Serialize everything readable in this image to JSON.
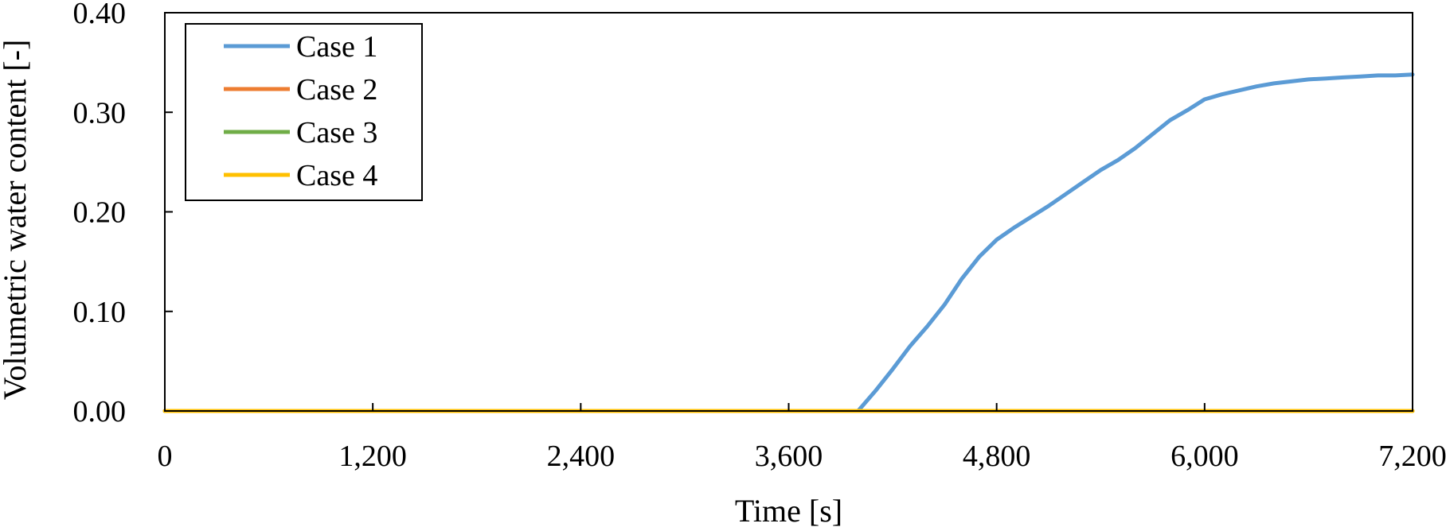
{
  "chart_data": {
    "type": "line",
    "title": "",
    "xlabel": "Time [s]",
    "ylabel": "Volumetric water content [-]",
    "xlim": [
      0,
      7200
    ],
    "ylim": [
      0,
      0.4
    ],
    "x_ticks": [
      "0",
      "1,200",
      "2,400",
      "3,600",
      "4,800",
      "6,000",
      "7,200"
    ],
    "x_tick_values": [
      0,
      1200,
      2400,
      3600,
      4800,
      6000,
      7200
    ],
    "y_ticks": [
      "0.00",
      "0.10",
      "0.20",
      "0.30",
      "0.40"
    ],
    "y_tick_values": [
      0,
      0.1,
      0.2,
      0.3,
      0.4
    ],
    "grid": false,
    "legend_position": "top-left",
    "series": [
      {
        "name": "Case 1",
        "color": "#5B9BD5",
        "x": [
          0,
          4000,
          4100,
          4200,
          4300,
          4400,
          4500,
          4600,
          4700,
          4800,
          4900,
          5000,
          5100,
          5200,
          5300,
          5400,
          5500,
          5600,
          5700,
          5800,
          5900,
          6000,
          6100,
          6200,
          6300,
          6400,
          6500,
          6600,
          6700,
          6800,
          6900,
          7000,
          7100,
          7200
        ],
        "y": [
          0,
          0,
          0.02,
          0.042,
          0.065,
          0.085,
          0.107,
          0.133,
          0.155,
          0.172,
          0.184,
          0.195,
          0.206,
          0.218,
          0.23,
          0.242,
          0.252,
          0.264,
          0.278,
          0.292,
          0.302,
          0.313,
          0.318,
          0.322,
          0.326,
          0.329,
          0.331,
          0.333,
          0.334,
          0.335,
          0.336,
          0.337,
          0.337,
          0.338
        ]
      },
      {
        "name": "Case 2",
        "color": "#ED7D31",
        "x": [
          0,
          7200
        ],
        "y": [
          0,
          0
        ]
      },
      {
        "name": "Case 3",
        "color": "#70AD47",
        "x": [
          0,
          7200
        ],
        "y": [
          0,
          0
        ]
      },
      {
        "name": "Case 4",
        "color": "#FFC000",
        "x": [
          0,
          7200
        ],
        "y": [
          0,
          0
        ]
      }
    ]
  }
}
